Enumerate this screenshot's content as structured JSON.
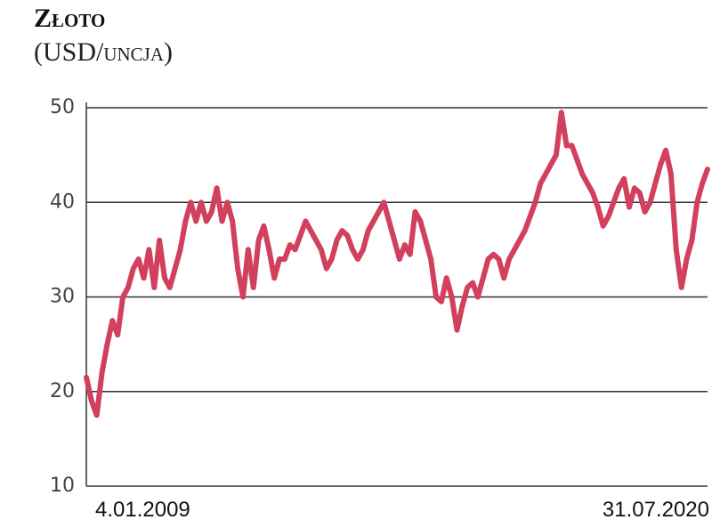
{
  "chart_data": {
    "type": "line",
    "title": "Złoto",
    "subtitle": "(USD/uncja)",
    "categories": [
      "4.01.2009",
      null,
      null,
      null,
      null,
      null,
      null,
      null,
      null,
      null,
      null,
      null,
      null,
      null,
      null,
      null,
      null,
      null,
      null,
      null,
      null,
      null,
      null,
      null,
      null,
      null,
      null,
      null,
      null,
      null,
      null,
      null,
      null,
      null,
      null,
      null,
      null,
      null,
      null,
      null,
      null,
      null,
      null,
      null,
      null,
      null,
      null,
      null,
      null,
      null,
      null,
      null,
      null,
      null,
      null,
      null,
      null,
      null,
      null,
      null,
      null,
      null,
      null,
      null,
      null,
      null,
      null,
      null,
      null,
      null,
      null,
      null,
      null,
      null,
      null,
      null,
      null,
      null,
      null,
      null,
      null,
      null,
      null,
      null,
      null,
      null,
      null,
      null,
      null,
      null,
      null,
      null,
      null,
      null,
      null,
      null,
      null,
      null,
      null,
      null,
      null,
      null,
      null,
      null,
      null,
      null,
      null,
      null,
      null,
      null,
      null,
      null,
      null,
      null,
      null,
      null,
      null,
      null,
      null,
      "31.07.2020"
    ],
    "values": [
      21.5,
      19,
      17.5,
      22,
      25,
      27.5,
      26,
      30,
      31,
      33,
      34,
      32,
      35,
      31,
      36,
      32,
      31,
      33,
      35,
      38,
      40,
      38,
      40,
      38,
      39,
      41.5,
      38,
      40,
      38,
      33,
      30,
      35,
      31,
      36,
      37.5,
      35,
      32,
      34,
      34,
      35.5,
      35,
      36.5,
      38,
      37,
      36,
      35,
      33,
      34,
      36,
      37,
      36.5,
      35,
      34,
      35,
      37,
      38,
      39,
      40,
      38,
      36,
      34,
      35.5,
      34.5,
      39,
      38,
      36,
      34,
      30,
      29.5,
      32,
      30,
      26.5,
      29,
      31,
      31.5,
      30,
      32,
      34,
      34.5,
      34,
      32,
      34,
      35,
      36,
      37,
      38.5,
      40,
      42,
      43,
      44,
      45,
      49.5,
      46,
      46,
      44.5,
      43,
      42,
      41,
      39.5,
      37.5,
      38.5,
      40,
      41.5,
      42.5,
      39.5,
      41.5,
      41,
      39,
      40,
      42,
      44,
      45.5,
      43,
      35,
      31,
      34,
      36,
      40,
      42,
      43.5
    ],
    "color": "#d1405c",
    "ylim": [
      10,
      50
    ],
    "yticks": [
      10,
      20,
      30,
      40,
      50
    ],
    "grid": true
  }
}
